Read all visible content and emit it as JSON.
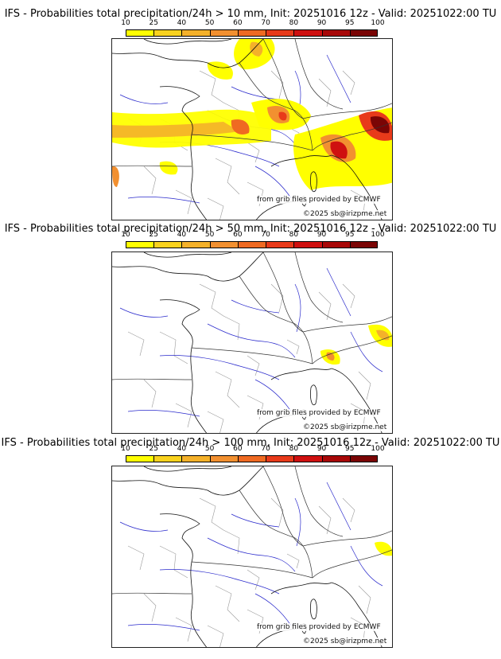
{
  "panels": [
    {
      "title": "IFS - Probabilities total precipitation/24h > 10 mm, Init: 20251016 12z - Valid: 20251022:00 TU",
      "threshold_mm": 10
    },
    {
      "title": "IFS - Probabilities total precipitation/24h > 50 mm, Init: 20251016 12z - Valid: 20251022:00 TU",
      "threshold_mm": 50
    },
    {
      "title": "IFS - Probabilities total precipitation/24h > 100 mm, Init: 20251016 12z - Valid: 20251022:00 TU",
      "threshold_mm": 100
    }
  ],
  "colorbar": {
    "ticks": [
      "10",
      "25",
      "40",
      "50",
      "60",
      "70",
      "80",
      "90",
      "95",
      "100"
    ],
    "colors": [
      "#ffff00",
      "#f9d21e",
      "#f4b12a",
      "#f29030",
      "#ef6a22",
      "#e83a1a",
      "#cf1010",
      "#a80808",
      "#7a0505"
    ]
  },
  "credits": {
    "source": "from grib files provided by ECMWF",
    "copyright": "©2025 sb@irizpme.net"
  }
}
